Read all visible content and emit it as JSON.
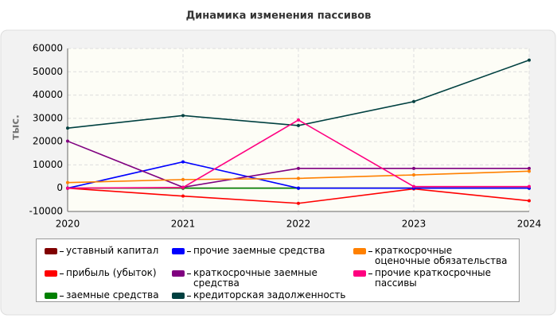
{
  "chart_data": {
    "type": "line",
    "title": "Динамика изменения пассивов",
    "ylabel": "тыс.",
    "x": [
      2020,
      2021,
      2022,
      2023,
      2024
    ],
    "xlim": [
      2020,
      2024
    ],
    "xticks": [
      2020,
      2021,
      2022,
      2023,
      2024
    ],
    "ylim": [
      -10000,
      60000
    ],
    "yticks": [
      -10000,
      0,
      10000,
      20000,
      30000,
      40000,
      50000,
      60000
    ],
    "grid": true,
    "series": [
      {
        "name": "уставный капитал",
        "color": "#800000",
        "values": [
          10,
          10,
          10,
          10,
          10
        ]
      },
      {
        "name": "прибыль (убыток)",
        "color": "#ff0000",
        "values": [
          0,
          -3400,
          -6500,
          -300,
          -5400
        ]
      },
      {
        "name": "заемные средства",
        "color": "#008000",
        "values": [
          0,
          0,
          0,
          0,
          0
        ]
      },
      {
        "name": "прочие заемные средства",
        "color": "#0000ff",
        "values": [
          0,
          11300,
          0,
          0,
          0
        ]
      },
      {
        "name": "краткосрочные заемные средства",
        "color": "#800080",
        "values": [
          20200,
          400,
          8500,
          8500,
          8500
        ]
      },
      {
        "name": "кредиторская задолженность",
        "color": "#004040",
        "values": [
          25800,
          31200,
          26900,
          37200,
          55000
        ]
      },
      {
        "name": "краткосрочные оценочные обязательства",
        "color": "#ff8000",
        "values": [
          2400,
          3700,
          4200,
          5700,
          7300
        ]
      },
      {
        "name": "прочие краткосрочные пассивы",
        "color": "#ff0080",
        "values": [
          0,
          300,
          29300,
          700,
          700
        ]
      }
    ]
  }
}
